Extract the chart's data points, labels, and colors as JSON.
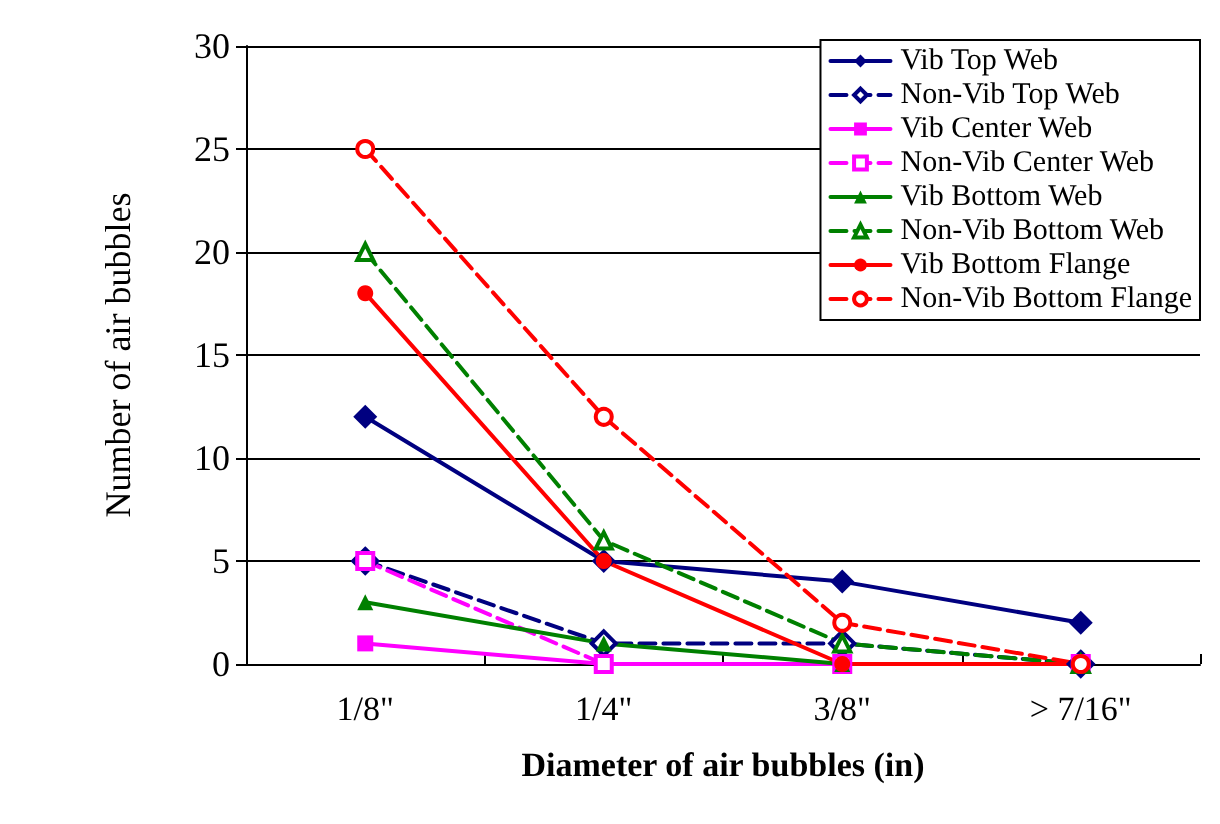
{
  "chart_data": {
    "type": "line",
    "xlabel": "Diameter of air bubbles (in)",
    "ylabel": "Number of air bubbles",
    "categories": [
      "1/8\"",
      "1/4\"",
      "3/8\"",
      "> 7/16\""
    ],
    "series": [
      {
        "name": "Vib Top Web",
        "color": "#000080",
        "marker": "diamond",
        "line_style": "solid",
        "values": [
          12,
          5,
          4,
          2
        ]
      },
      {
        "name": "Non-Vib Top Web",
        "color": "#000080",
        "marker": "diamond",
        "line_style": "dashed",
        "values": [
          5,
          1,
          1,
          0
        ]
      },
      {
        "name": "Vib Center Web",
        "color": "#ff00ff",
        "marker": "square",
        "line_style": "solid",
        "values": [
          1,
          0,
          0,
          0
        ]
      },
      {
        "name": "Non-Vib Center Web",
        "color": "#ff00ff",
        "marker": "square",
        "line_style": "dashed",
        "values": [
          5,
          0,
          0,
          0
        ]
      },
      {
        "name": "Vib Bottom Web",
        "color": "#008000",
        "marker": "triangle",
        "line_style": "solid",
        "values": [
          3,
          1,
          0,
          0
        ]
      },
      {
        "name": "Non-Vib Bottom Web",
        "color": "#008000",
        "marker": "triangle",
        "line_style": "dashed",
        "values": [
          20,
          6,
          1,
          0
        ]
      },
      {
        "name": "Vib Bottom Flange",
        "color": "#ff0000",
        "marker": "circle",
        "line_style": "solid",
        "values": [
          18,
          5,
          0,
          0
        ]
      },
      {
        "name": "Non-Vib Bottom Flange",
        "color": "#ff0000",
        "marker": "circle",
        "line_style": "dashed",
        "values": [
          25,
          12,
          2,
          0
        ]
      }
    ],
    "ylim": [
      0,
      30
    ],
    "yticks": [
      0,
      5,
      10,
      15,
      20,
      25,
      30
    ],
    "grid": "y",
    "legend": "top right"
  }
}
